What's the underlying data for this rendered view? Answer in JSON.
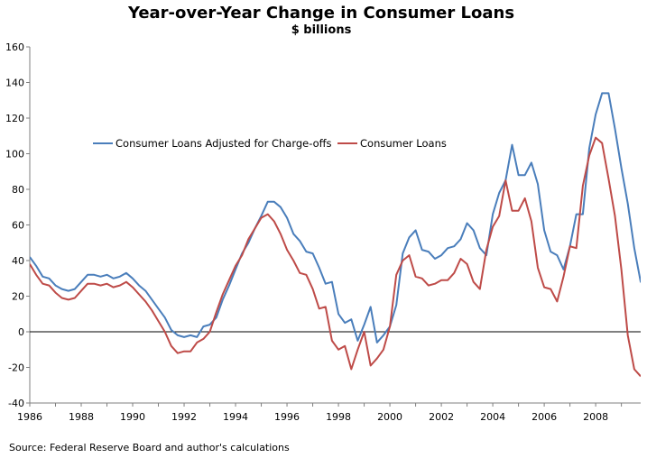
{
  "chart_data": {
    "type": "line",
    "title": "Year-over-Year Change in Consumer Loans",
    "subtitle": "$ billions",
    "source": "Source: Federal Reserve Board and author's calculations",
    "xlim": [
      1986,
      2009.75
    ],
    "ylim": [
      -40,
      160
    ],
    "y_ticks": [
      -40,
      -20,
      0,
      20,
      40,
      60,
      80,
      100,
      120,
      140,
      160
    ],
    "x_ticks": [
      1986,
      1988,
      1990,
      1992,
      1994,
      1996,
      1998,
      2000,
      2002,
      2004,
      2006,
      2008
    ],
    "grid": false,
    "zero_line": true,
    "legend_position": "top-left",
    "series": [
      {
        "name": "Consumer Loans Adjusted  for  Charge-offs",
        "color": "#4a7ebb",
        "points": [
          [
            1986,
            42
          ],
          [
            1986.25,
            37
          ],
          [
            1986.5,
            31
          ],
          [
            1986.75,
            30
          ],
          [
            1987,
            26
          ],
          [
            1987.25,
            24
          ],
          [
            1987.5,
            23
          ],
          [
            1987.75,
            24
          ],
          [
            1988,
            28
          ],
          [
            1988.25,
            32
          ],
          [
            1988.5,
            32
          ],
          [
            1988.75,
            31
          ],
          [
            1989,
            32
          ],
          [
            1989.25,
            30
          ],
          [
            1989.5,
            31
          ],
          [
            1989.75,
            33
          ],
          [
            1990,
            30
          ],
          [
            1990.25,
            26
          ],
          [
            1990.5,
            23
          ],
          [
            1990.75,
            18
          ],
          [
            1991,
            13
          ],
          [
            1991.25,
            8
          ],
          [
            1991.5,
            1
          ],
          [
            1991.75,
            -2
          ],
          [
            1992,
            -3
          ],
          [
            1992.25,
            -2
          ],
          [
            1992.5,
            -3
          ],
          [
            1992.75,
            3
          ],
          [
            1993,
            4
          ],
          [
            1993.25,
            8
          ],
          [
            1993.5,
            18
          ],
          [
            1993.75,
            26
          ],
          [
            1994,
            35
          ],
          [
            1994.25,
            44
          ],
          [
            1994.5,
            50
          ],
          [
            1994.75,
            58
          ],
          [
            1995,
            65
          ],
          [
            1995.25,
            73
          ],
          [
            1995.5,
            73
          ],
          [
            1995.75,
            70
          ],
          [
            1996,
            64
          ],
          [
            1996.25,
            55
          ],
          [
            1996.5,
            51
          ],
          [
            1996.75,
            45
          ],
          [
            1997,
            44
          ],
          [
            1997.25,
            36
          ],
          [
            1997.5,
            27
          ],
          [
            1997.75,
            28
          ],
          [
            1998,
            10
          ],
          [
            1998.25,
            5
          ],
          [
            1998.5,
            7
          ],
          [
            1998.75,
            -5
          ],
          [
            1999,
            4
          ],
          [
            1999.25,
            14
          ],
          [
            1999.5,
            -6
          ],
          [
            1999.75,
            -2
          ],
          [
            2000,
            3
          ],
          [
            2000.25,
            15
          ],
          [
            2000.5,
            44
          ],
          [
            2000.75,
            53
          ],
          [
            2001,
            57
          ],
          [
            2001.25,
            46
          ],
          [
            2001.5,
            45
          ],
          [
            2001.75,
            41
          ],
          [
            2002,
            43
          ],
          [
            2002.25,
            47
          ],
          [
            2002.5,
            48
          ],
          [
            2002.75,
            52
          ],
          [
            2003,
            61
          ],
          [
            2003.25,
            57
          ],
          [
            2003.5,
            47
          ],
          [
            2003.75,
            43
          ],
          [
            2004,
            66
          ],
          [
            2004.25,
            78
          ],
          [
            2004.5,
            85
          ],
          [
            2004.75,
            105
          ],
          [
            2005,
            88
          ],
          [
            2005.25,
            88
          ],
          [
            2005.5,
            95
          ],
          [
            2005.75,
            83
          ],
          [
            2006,
            57
          ],
          [
            2006.25,
            45
          ],
          [
            2006.5,
            43
          ],
          [
            2006.75,
            35
          ],
          [
            2007,
            48
          ],
          [
            2007.25,
            66
          ],
          [
            2007.5,
            66
          ],
          [
            2007.75,
            103
          ],
          [
            2008,
            122
          ],
          [
            2008.25,
            134
          ],
          [
            2008.5,
            134
          ],
          [
            2008.75,
            114
          ],
          [
            2009,
            92
          ],
          [
            2009.25,
            72
          ],
          [
            2009.5,
            47
          ],
          [
            2009.75,
            28
          ],
          [
            2010,
            27
          ]
        ]
      },
      {
        "name": "Consumer Loans",
        "color": "#be4b48",
        "points": [
          [
            1986,
            38
          ],
          [
            1986.25,
            32
          ],
          [
            1986.5,
            27
          ],
          [
            1986.75,
            26
          ],
          [
            1987,
            22
          ],
          [
            1987.25,
            19
          ],
          [
            1987.5,
            18
          ],
          [
            1987.75,
            19
          ],
          [
            1988,
            23
          ],
          [
            1988.25,
            27
          ],
          [
            1988.5,
            27
          ],
          [
            1988.75,
            26
          ],
          [
            1989,
            27
          ],
          [
            1989.25,
            25
          ],
          [
            1989.5,
            26
          ],
          [
            1989.75,
            28
          ],
          [
            1990,
            25
          ],
          [
            1990.25,
            21
          ],
          [
            1990.5,
            17
          ],
          [
            1990.75,
            12
          ],
          [
            1991,
            6
          ],
          [
            1991.25,
            0
          ],
          [
            1991.5,
            -8
          ],
          [
            1991.75,
            -12
          ],
          [
            1992,
            -11
          ],
          [
            1992.25,
            -11
          ],
          [
            1992.5,
            -6
          ],
          [
            1992.75,
            -4
          ],
          [
            1993,
            0
          ],
          [
            1993.25,
            11
          ],
          [
            1993.5,
            21
          ],
          [
            1993.75,
            29
          ],
          [
            1994,
            37
          ],
          [
            1994.25,
            43
          ],
          [
            1994.5,
            52
          ],
          [
            1994.75,
            58
          ],
          [
            1995,
            64
          ],
          [
            1995.25,
            66
          ],
          [
            1995.5,
            62
          ],
          [
            1995.75,
            55
          ],
          [
            1996,
            46
          ],
          [
            1996.25,
            40
          ],
          [
            1996.5,
            33
          ],
          [
            1996.75,
            32
          ],
          [
            1997,
            24
          ],
          [
            1997.25,
            13
          ],
          [
            1997.5,
            14
          ],
          [
            1997.75,
            -5
          ],
          [
            1998,
            -10
          ],
          [
            1998.25,
            -8
          ],
          [
            1998.5,
            -21
          ],
          [
            1998.75,
            -10
          ],
          [
            1999,
            0
          ],
          [
            1999.25,
            -19
          ],
          [
            1999.5,
            -15
          ],
          [
            1999.75,
            -10
          ],
          [
            2000,
            3
          ],
          [
            2000.25,
            32
          ],
          [
            2000.5,
            40
          ],
          [
            2000.75,
            43
          ],
          [
            2001,
            31
          ],
          [
            2001.25,
            30
          ],
          [
            2001.5,
            26
          ],
          [
            2001.75,
            27
          ],
          [
            2002,
            29
          ],
          [
            2002.25,
            29
          ],
          [
            2002.5,
            33
          ],
          [
            2002.75,
            41
          ],
          [
            2003,
            38
          ],
          [
            2003.25,
            28
          ],
          [
            2003.5,
            24
          ],
          [
            2003.75,
            46
          ],
          [
            2004,
            59
          ],
          [
            2004.25,
            65
          ],
          [
            2004.5,
            85
          ],
          [
            2004.75,
            68
          ],
          [
            2005,
            68
          ],
          [
            2005.25,
            75
          ],
          [
            2005.5,
            62
          ],
          [
            2005.75,
            36
          ],
          [
            2006,
            25
          ],
          [
            2006.25,
            24
          ],
          [
            2006.5,
            17
          ],
          [
            2006.75,
            31
          ],
          [
            2007,
            48
          ],
          [
            2007.25,
            47
          ],
          [
            2007.5,
            82
          ],
          [
            2007.75,
            99
          ],
          [
            2008,
            109
          ],
          [
            2008.25,
            106
          ],
          [
            2008.5,
            86
          ],
          [
            2008.75,
            65
          ],
          [
            2009,
            35
          ],
          [
            2009.25,
            -2
          ],
          [
            2009.5,
            -21
          ],
          [
            2009.75,
            -25
          ]
        ]
      }
    ]
  }
}
